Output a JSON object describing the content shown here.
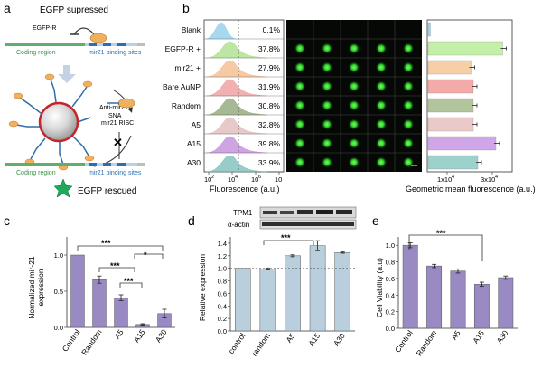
{
  "panel_labels": {
    "a": "a",
    "b": "b",
    "c": "c",
    "d": "d",
    "e": "e"
  },
  "panel_a": {
    "egfp_suppressed": "EGFP supressed",
    "egfp_r": "EGFP-R",
    "coding_region": "Coding region",
    "binding_sites": "mir21 binding sites",
    "anti_mir21": "Anti-mir21",
    "sna": "SNA",
    "mir21_risc": "mir21 RISC",
    "egfp_rescued": "EGFP rescued"
  },
  "panel_b": {
    "samples": [
      "Blank",
      "EGFP-R +",
      "mir21 +",
      "Bare AuNP",
      "Random",
      "A5",
      "A15",
      "A30"
    ],
    "percents": [
      "0.1%",
      "37.8%",
      "27.9%",
      "31.9%",
      "30.8%",
      "32.8%",
      "39.8%",
      "33.9%"
    ],
    "hist_colors": [
      "#9fd4ea",
      "#b6e39a",
      "#f4c49a",
      "#f1a8a8",
      "#9db08a",
      "#e6c3c3",
      "#c99be0",
      "#8cc7c2"
    ],
    "bar_colors": [
      "#9fd4ea",
      "#c4efa8",
      "#f6cfa6",
      "#f3aaa8",
      "#b2c49c",
      "#ecc9c9",
      "#d1a6e8",
      "#9dd1cc"
    ],
    "bar_values": [
      0.1,
      3.3,
      1.9,
      2.0,
      2.0,
      2.0,
      3.0,
      2.2
    ],
    "hist_xlabel": "Fluorescence (a.u.)",
    "hist_ticks": [
      "10",
      "10",
      "10",
      "10"
    ],
    "hist_exps": [
      "2",
      "4",
      "6",
      ""
    ],
    "bar_xlabel": "Geometric mean fluorescence (a.u.)",
    "bar_tick1": "1x10",
    "bar_tick1_exp": "4",
    "bar_tick2": "3x10",
    "bar_tick2_exp": "4"
  },
  "panel_c": {
    "ylabel_1": "Normalized mir-21",
    "ylabel_2": "expression",
    "sig": [
      "***",
      "*",
      "***",
      "***"
    ],
    "chart_data": {
      "type": "bar",
      "categories": [
        "Control",
        "Random",
        "A5",
        "A15",
        "A30"
      ],
      "values": [
        1.0,
        0.66,
        0.41,
        0.04,
        0.19
      ],
      "errors": [
        0.0,
        0.05,
        0.04,
        0.01,
        0.06
      ],
      "ylim": [
        0,
        1.25
      ],
      "yticks": [
        "0.0",
        "0.5",
        "1.0"
      ],
      "color": "#9a8ac4"
    }
  },
  "panel_d": {
    "ylabel": "Relative expression",
    "blot_label_1": "TPM1",
    "blot_label_2": "α-actin",
    "sig": "***",
    "chart_data": {
      "type": "bar",
      "categories": [
        "control",
        "random",
        "A5",
        "A15",
        "A30"
      ],
      "values": [
        1.0,
        0.99,
        1.2,
        1.36,
        1.25
      ],
      "errors": [
        0.0,
        0.015,
        0.015,
        0.08,
        0.01
      ],
      "ylim": [
        0,
        1.5
      ],
      "yticks": [
        "0.0",
        "0.2",
        "0.4",
        "0.6",
        "0.8",
        "1.0",
        "1.2",
        "1.4"
      ],
      "color": "#b9cfdd"
    }
  },
  "panel_e": {
    "ylabel": "Cell Viability (a.u)",
    "sig": "***",
    "chart_data": {
      "type": "bar",
      "categories": [
        "Control",
        "Random",
        "A5",
        "A15",
        "A30"
      ],
      "values": [
        1.0,
        0.75,
        0.69,
        0.53,
        0.61
      ],
      "errors": [
        0.03,
        0.02,
        0.025,
        0.025,
        0.02
      ],
      "ylim": [
        0,
        1.1
      ],
      "yticks": [
        "0.0",
        "0.2",
        "0.4",
        "0.6",
        "0.8",
        "1.0"
      ],
      "color": "#9a8ac4"
    }
  }
}
